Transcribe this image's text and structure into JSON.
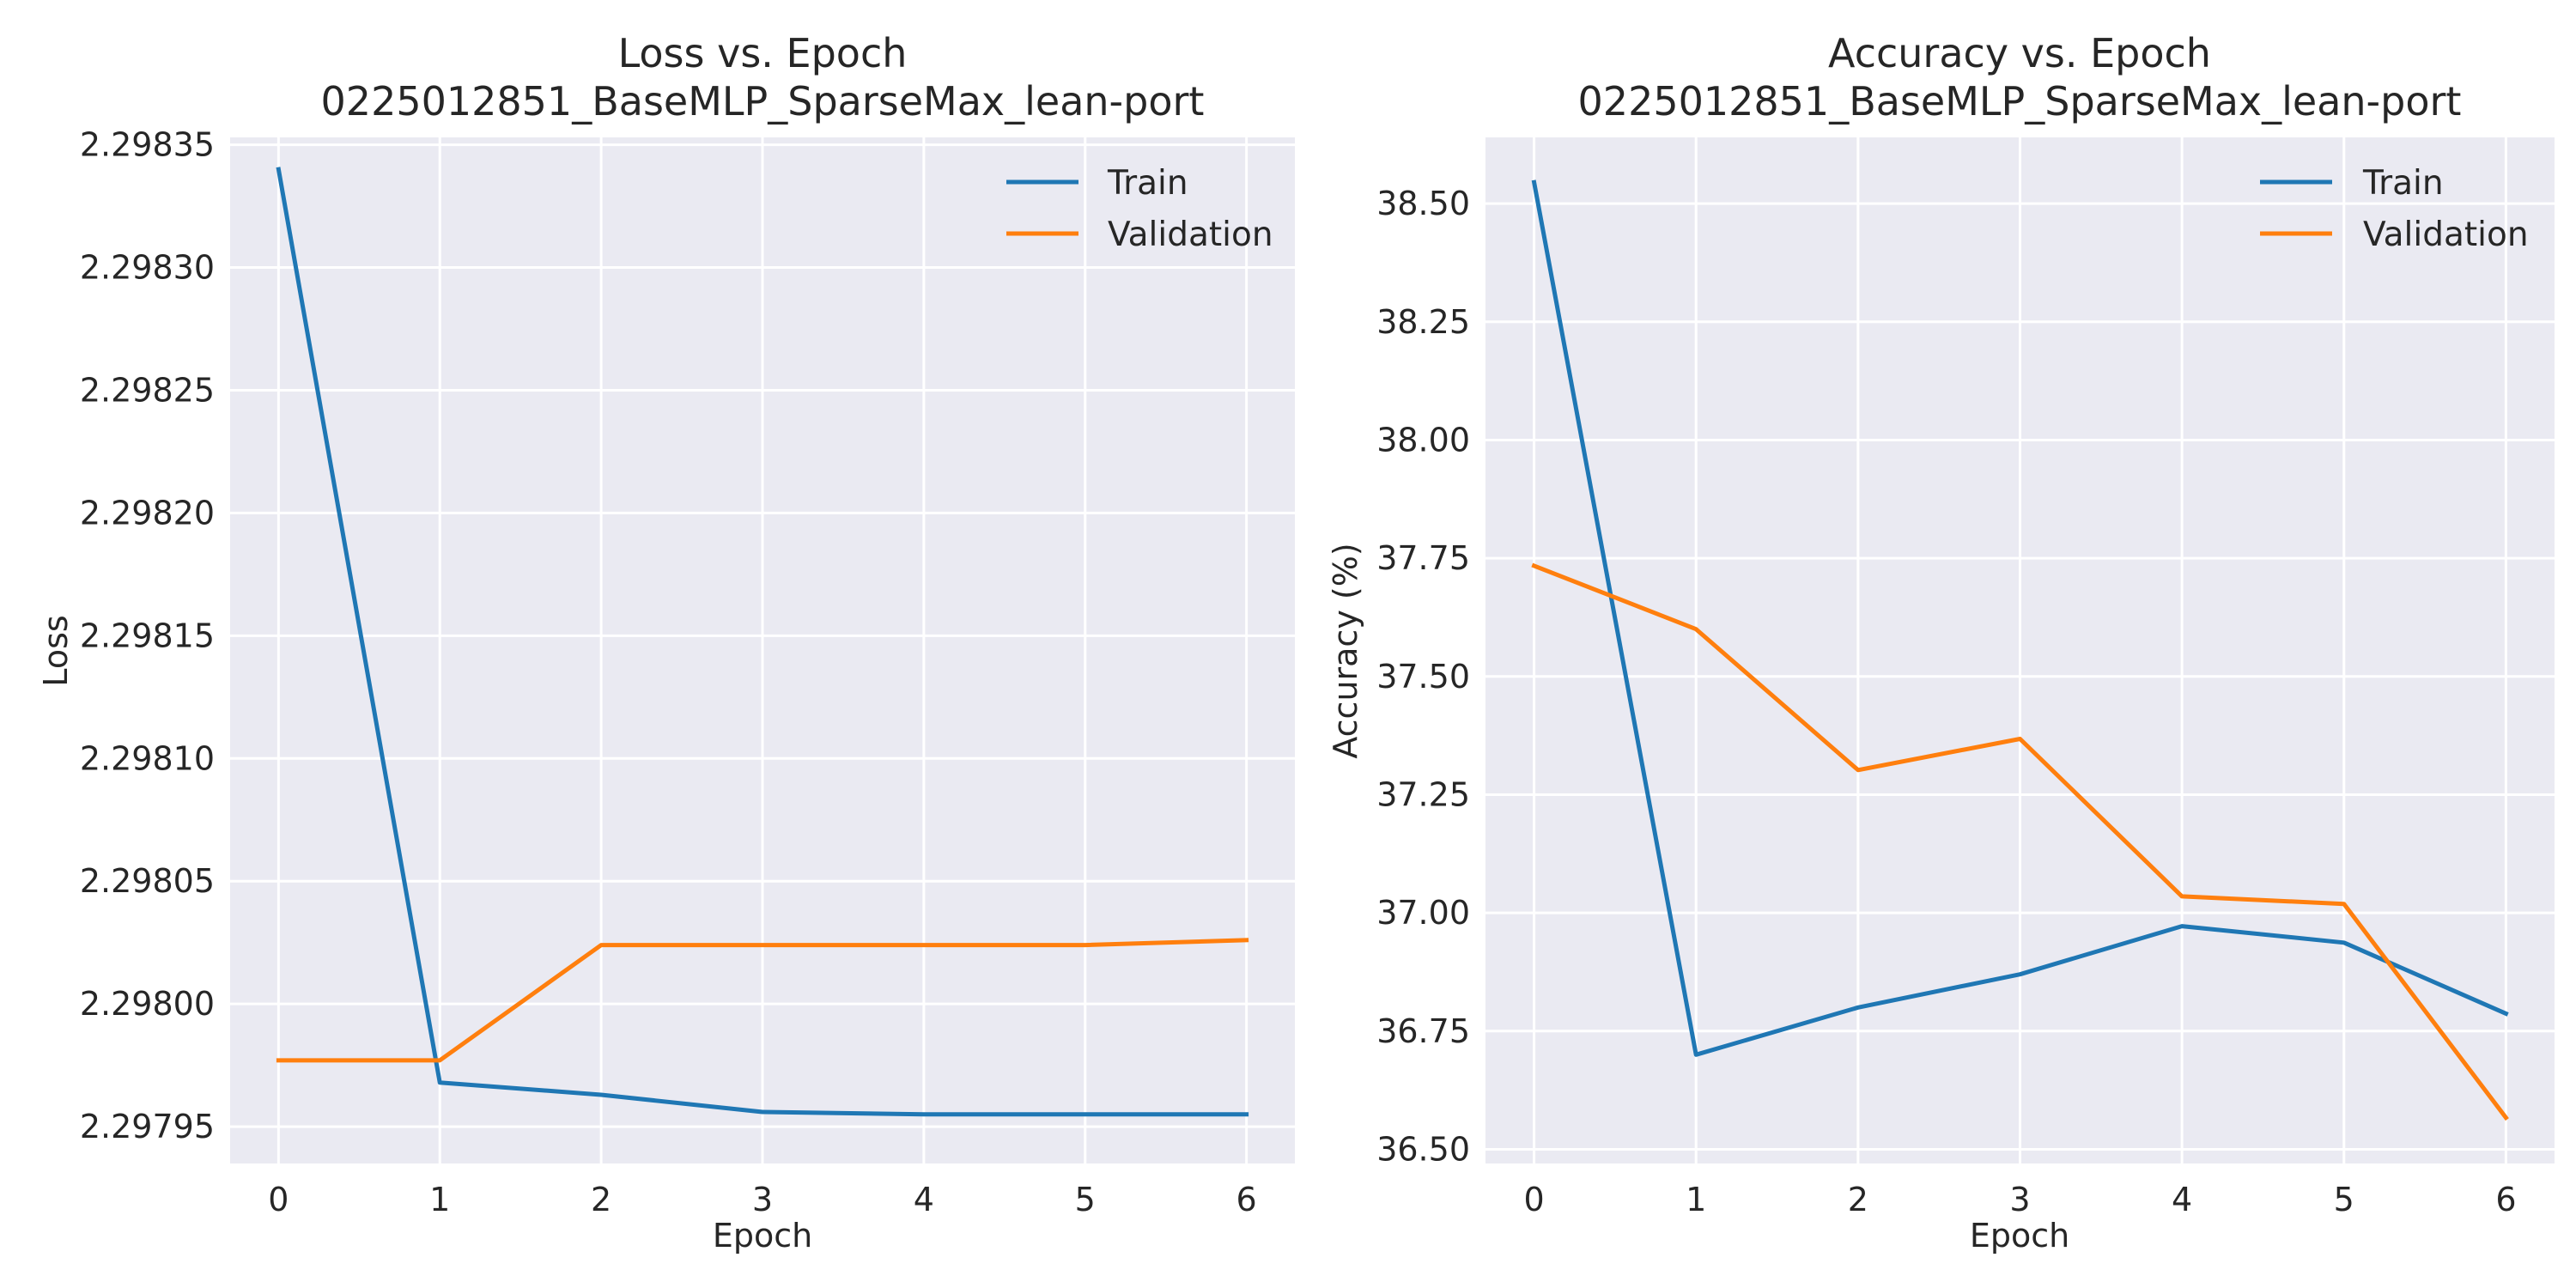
{
  "chart_data": [
    {
      "type": "line",
      "title": "Loss vs. Epoch",
      "subtitle": "0225012851_BaseMLP_SparseMax_lean-port",
      "xlabel": "Epoch",
      "ylabel": "Loss",
      "x": [
        0,
        1,
        2,
        3,
        4,
        5,
        6
      ],
      "xticks": [
        "0",
        "1",
        "2",
        "3",
        "4",
        "5",
        "6"
      ],
      "xlim": [
        -0.3,
        6.3
      ],
      "ylim": [
        2.297935,
        2.298353
      ],
      "yticks": [
        "2.29795",
        "2.29800",
        "2.29805",
        "2.29810",
        "2.29815",
        "2.29820",
        "2.29825",
        "2.29830",
        "2.29835"
      ],
      "grid": true,
      "legend_position": "upper right",
      "series": [
        {
          "name": "Train",
          "color": "#1f77b4",
          "values": [
            2.29834,
            2.297968,
            2.297963,
            2.297956,
            2.297955,
            2.297955,
            2.297955
          ]
        },
        {
          "name": "Validation",
          "color": "#ff7f0e",
          "values": [
            2.297977,
            2.297977,
            2.298024,
            2.298024,
            2.298024,
            2.298024,
            2.298026
          ]
        }
      ]
    },
    {
      "type": "line",
      "title": "Accuracy vs. Epoch",
      "subtitle": "0225012851_BaseMLP_SparseMax_lean-port",
      "xlabel": "Epoch",
      "ylabel": "Accuracy (%)",
      "x": [
        0,
        1,
        2,
        3,
        4,
        5,
        6
      ],
      "xticks": [
        "0",
        "1",
        "2",
        "3",
        "4",
        "5",
        "6"
      ],
      "xlim": [
        -0.3,
        6.3
      ],
      "ylim": [
        36.47,
        38.64
      ],
      "yticks": [
        "36.50",
        "36.75",
        "37.00",
        "37.25",
        "37.50",
        "37.75",
        "38.00",
        "38.25",
        "38.50"
      ],
      "grid": true,
      "legend_position": "upper right",
      "series": [
        {
          "name": "Train",
          "color": "#1f77b4",
          "values": [
            38.545,
            36.7,
            36.8,
            36.87,
            36.972,
            36.937,
            36.787
          ]
        },
        {
          "name": "Validation",
          "color": "#ff7f0e",
          "values": [
            37.734,
            37.6,
            37.302,
            37.368,
            37.035,
            37.019,
            36.567
          ]
        }
      ]
    }
  ]
}
